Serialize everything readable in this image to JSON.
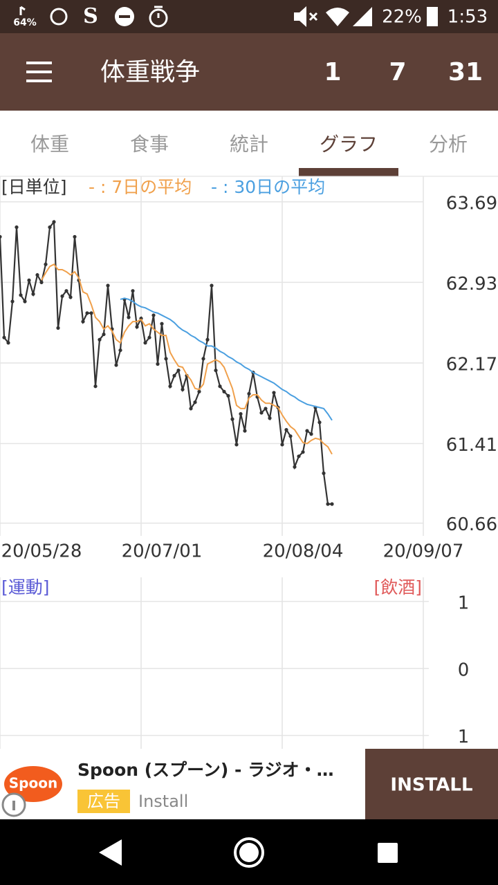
{
  "status_bar": {
    "left_badge": "64%",
    "battery": "22%",
    "time": "1:53"
  },
  "app_bar": {
    "title": "体重戦争",
    "counters": [
      "1",
      "7",
      "31"
    ]
  },
  "tabs": {
    "items": [
      "体重",
      "食事",
      "統計",
      "グラフ",
      "分析"
    ],
    "active": 3
  },
  "chart_data": [
    {
      "type": "line",
      "x": [
        "20/05/28",
        "20/05/29",
        "20/05/30",
        "20/05/31",
        "20/06/01",
        "20/06/02",
        "20/06/03",
        "20/06/04",
        "20/06/05",
        "20/06/06",
        "20/06/07",
        "20/06/08",
        "20/06/09",
        "20/06/10",
        "20/06/11",
        "20/06/12",
        "20/06/13",
        "20/06/14",
        "20/06/15",
        "20/06/16",
        "20/06/17",
        "20/06/18",
        "20/06/19",
        "20/06/20",
        "20/06/21",
        "20/06/22",
        "20/06/23",
        "20/06/24",
        "20/06/25",
        "20/06/26",
        "20/06/27",
        "20/06/28",
        "20/06/29",
        "20/06/30",
        "20/07/01",
        "20/07/02",
        "20/07/03",
        "20/07/04",
        "20/07/05",
        "20/07/06",
        "20/07/07",
        "20/07/08",
        "20/07/09",
        "20/07/10",
        "20/07/11",
        "20/07/12",
        "20/07/13",
        "20/07/14",
        "20/07/15",
        "20/07/16",
        "20/07/17",
        "20/07/18",
        "20/07/19",
        "20/07/20",
        "20/07/21",
        "20/07/22",
        "20/07/23",
        "20/07/24",
        "20/07/25",
        "20/07/26",
        "20/07/27",
        "20/07/28",
        "20/07/29",
        "20/07/30",
        "20/07/31",
        "20/08/01",
        "20/08/02",
        "20/08/03",
        "20/08/04",
        "20/08/05",
        "20/08/06",
        "20/08/07",
        "20/08/08",
        "20/08/09",
        "20/08/10",
        "20/08/11",
        "20/08/12",
        "20/08/13",
        "20/08/14",
        "20/08/15",
        "20/08/16"
      ],
      "series": [
        {
          "name": "[日単位]",
          "color": "#333333",
          "markers": true,
          "values": [
            63.36,
            62.41,
            62.36,
            62.75,
            63.45,
            62.81,
            62.75,
            62.95,
            62.82,
            63.0,
            62.93,
            63.1,
            63.45,
            63.5,
            62.5,
            62.8,
            62.85,
            62.79,
            63.36,
            62.95,
            62.56,
            62.64,
            62.64,
            61.95,
            62.39,
            62.44,
            62.9,
            62.49,
            62.15,
            62.29,
            62.77,
            62.6,
            62.85,
            62.51,
            62.59,
            62.36,
            62.41,
            62.62,
            62.16,
            62.54,
            62.21,
            61.95,
            62.05,
            62.1,
            61.92,
            62.05,
            61.74,
            61.8,
            61.9,
            62.21,
            62.39,
            62.9,
            62.1,
            61.95,
            61.9,
            61.86,
            61.64,
            61.4,
            61.69,
            61.53,
            61.88,
            62.08,
            61.85,
            61.7,
            61.74,
            61.65,
            61.89,
            61.75,
            61.4,
            61.54,
            61.48,
            61.19,
            61.29,
            61.33,
            61.53,
            61.5,
            61.75,
            61.61,
            61.13,
            60.84,
            60.84
          ]
        },
        {
          "name": "- : 7日の平均",
          "color": "#f0a04b",
          "markers": false,
          "values": [
            null,
            null,
            null,
            null,
            null,
            null,
            null,
            null,
            null,
            null,
            62.95,
            63.02,
            63.08,
            63.1,
            63.05,
            63.05,
            63.03,
            63.0,
            63.03,
            62.97,
            62.84,
            62.82,
            62.72,
            62.6,
            62.56,
            62.49,
            62.52,
            62.47,
            62.39,
            62.36,
            62.46,
            62.52,
            62.56,
            62.56,
            62.58,
            62.52,
            62.54,
            62.49,
            62.46,
            62.43,
            62.43,
            62.27,
            62.2,
            62.14,
            62.13,
            62.06,
            62.01,
            61.93,
            61.92,
            61.97,
            62.16,
            62.18,
            62.2,
            62.18,
            62.13,
            62.03,
            61.93,
            61.77,
            61.74,
            61.74,
            61.84,
            61.87,
            61.87,
            61.82,
            61.79,
            61.79,
            61.77,
            61.75,
            61.68,
            61.62,
            61.57,
            61.54,
            61.48,
            61.42,
            61.41,
            61.44,
            61.46,
            61.45,
            61.41,
            61.38,
            61.31
          ]
        },
        {
          "name": "- : 30日の平均",
          "color": "#4a9fe0",
          "markers": false,
          "values": [
            null,
            null,
            null,
            null,
            null,
            null,
            null,
            null,
            null,
            null,
            null,
            null,
            null,
            null,
            null,
            null,
            null,
            null,
            null,
            null,
            null,
            null,
            null,
            null,
            null,
            null,
            null,
            null,
            null,
            62.77,
            62.78,
            62.77,
            62.75,
            62.72,
            62.7,
            62.69,
            62.67,
            62.65,
            62.64,
            62.62,
            62.6,
            62.58,
            62.55,
            62.51,
            62.48,
            62.46,
            62.43,
            62.41,
            62.38,
            62.36,
            62.33,
            62.33,
            62.31,
            62.28,
            62.26,
            62.23,
            62.21,
            62.18,
            62.16,
            62.13,
            62.11,
            62.08,
            62.06,
            62.04,
            62.02,
            62.0,
            61.98,
            61.95,
            61.92,
            61.9,
            61.87,
            61.85,
            61.82,
            61.8,
            61.78,
            61.77,
            61.76,
            61.75,
            61.74,
            61.69,
            61.63
          ]
        }
      ],
      "xlim": [
        "20/05/28",
        "20/09/07"
      ],
      "xticks": [
        "20/05/28",
        "20/07/01",
        "20/08/04",
        "20/09/07"
      ],
      "ylim": [
        60.54,
        63.93
      ],
      "yticks": [
        63.69,
        62.93,
        62.17,
        61.41,
        60.66
      ],
      "grid": true
    },
    {
      "type": "bar",
      "left_label": "[運動]",
      "left_color": "#5b5bd6",
      "right_label": "[飲酒]",
      "right_color": "#e05a5a",
      "ylim": [
        -1.2,
        1.36
      ],
      "yticks": [
        1,
        0,
        {
          "value": -1,
          "label": "1"
        }
      ],
      "grid": true
    }
  ],
  "ad": {
    "logo": "Spoon",
    "app_name": "Spoon (スプーン) - ラジオ・…",
    "badge": "広告",
    "subtitle": "Install",
    "button": "INSTALL"
  }
}
